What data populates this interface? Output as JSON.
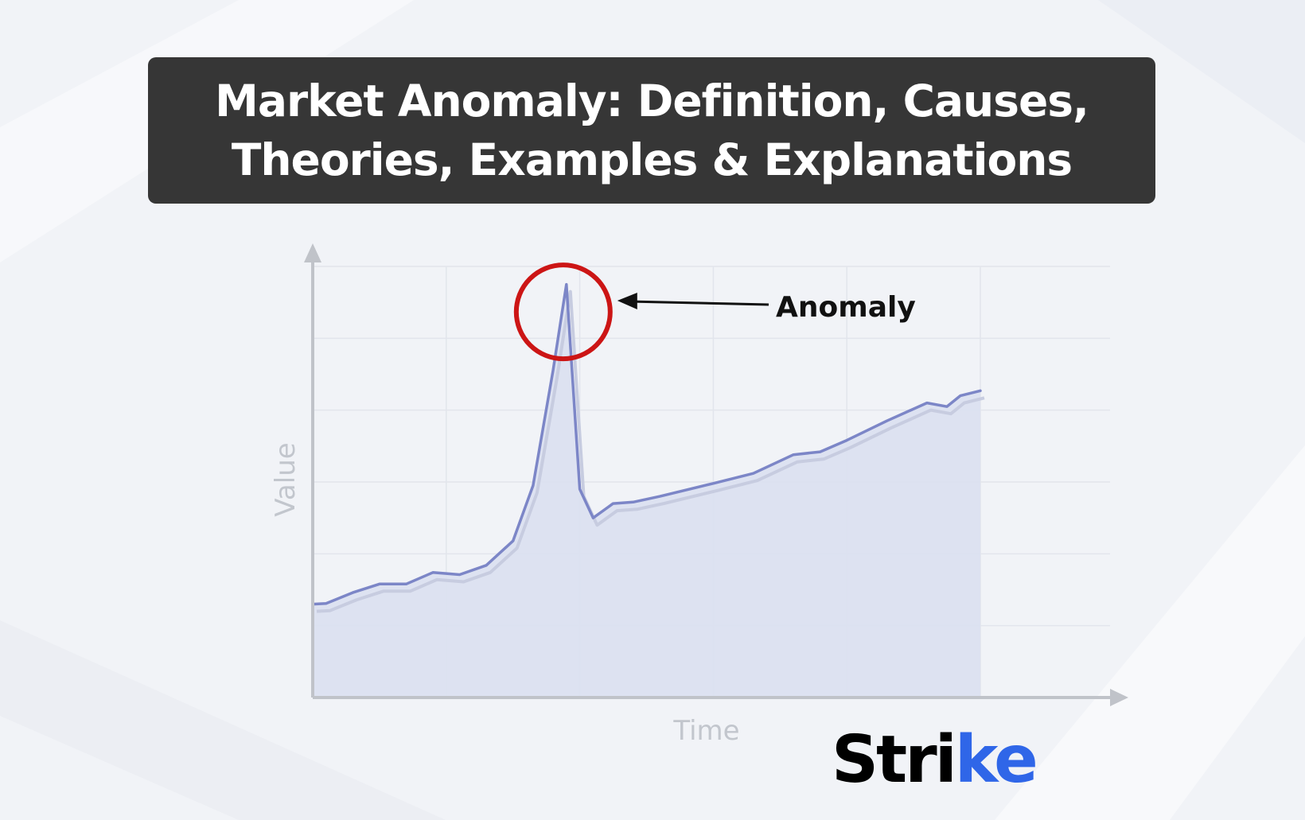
{
  "title": {
    "line1": "Market Anomaly: Definition, Causes,",
    "line2": "Theories, Examples & Explanations"
  },
  "chart_data": {
    "type": "area",
    "xlabel": "Time",
    "ylabel": "Value",
    "x_ticks": [],
    "y_ticks": [],
    "xlim": [
      0,
      5
    ],
    "ylim": [
      0,
      6
    ],
    "grid": true,
    "series": [
      {
        "x": [
          0,
          0.1,
          0.3,
          0.5,
          0.7,
          0.9,
          1.1,
          1.3,
          1.5,
          1.65,
          1.8,
          1.9,
          2.0,
          2.1,
          2.25,
          2.4,
          2.6,
          3.0,
          3.3,
          3.6,
          3.8,
          4.0,
          4.3,
          4.6,
          4.75,
          4.85,
          5.0
        ],
        "values": [
          1.3,
          1.31,
          1.46,
          1.58,
          1.58,
          1.74,
          1.71,
          1.84,
          2.18,
          2.95,
          4.55,
          5.75,
          2.9,
          2.5,
          2.7,
          2.72,
          2.8,
          2.98,
          3.12,
          3.38,
          3.42,
          3.58,
          3.85,
          4.1,
          4.05,
          4.2,
          4.27
        ]
      }
    ],
    "annotation": {
      "label": "Anomaly",
      "x": 1.9,
      "y": 5.6
    },
    "colors": {
      "line": "#7c86c7",
      "area": "#dbe0f0",
      "axis": "#c0c3c9",
      "grid": "#e2e5ec",
      "marker": "#cc1515"
    }
  },
  "logo": {
    "text_main": "Stri",
    "text_accent": "ke",
    "accent_color": "#2f66e8"
  }
}
